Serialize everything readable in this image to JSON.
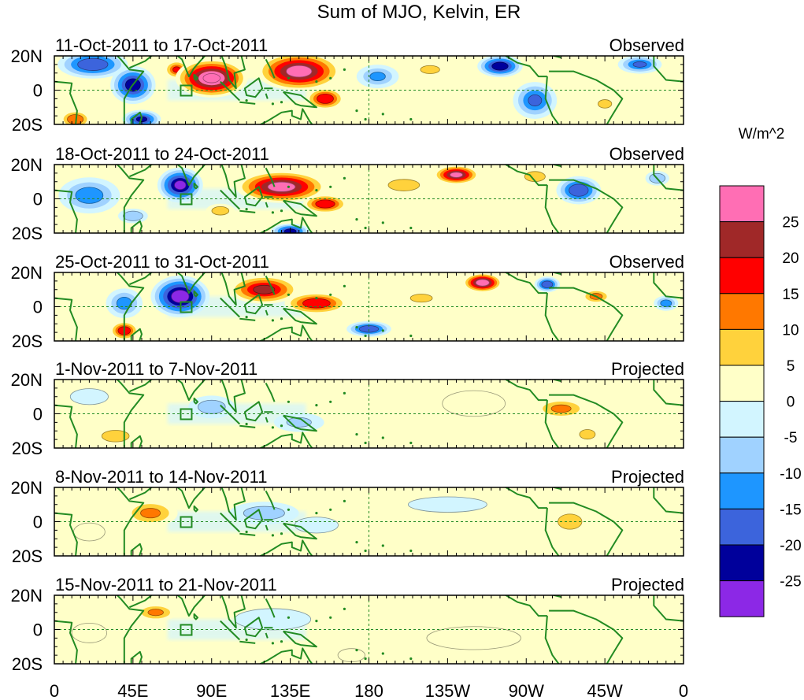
{
  "chart_data": {
    "type": "heatmap",
    "title": "Sum of MJO, Kelvin, ER",
    "units": "W/m^2",
    "lon_ticks": [
      "0",
      "45E",
      "90E",
      "135E",
      "180",
      "135W",
      "90W",
      "45W",
      "0"
    ],
    "lat_ticks": [
      "20N",
      "0",
      "20S"
    ],
    "xlim": [
      0,
      360
    ],
    "ylim": [
      -20,
      20
    ],
    "colorbar": {
      "levels": [
        "25",
        "20",
        "15",
        "10",
        "5",
        "0",
        "-5",
        "-10",
        "-15",
        "-20",
        "-25"
      ],
      "colors": [
        "#ff6eb4",
        "#a02828",
        "#ff0000",
        "#ff7800",
        "#ffd23c",
        "#ffffc8",
        "#d2f5ff",
        "#a0d2ff",
        "#1e96ff",
        "#3c64dc",
        "#00009b",
        "#8c28e6"
      ]
    },
    "panels": [
      {
        "period": "11-Oct-2011 to 17-Oct-2011",
        "type": "Observed",
        "blobs": [
          {
            "lon": 22,
            "lat": 15,
            "w": 22,
            "h": 9,
            "v": -22
          },
          {
            "lon": 45,
            "lat": 3,
            "w": 14,
            "h": 12,
            "v": -25
          },
          {
            "lon": 50,
            "lat": -17,
            "w": 12,
            "h": 6,
            "v": -23
          },
          {
            "lon": 12,
            "lat": -17,
            "w": 10,
            "h": 6,
            "v": 17
          },
          {
            "lon": 70,
            "lat": 12,
            "w": 8,
            "h": 6,
            "v": 18
          },
          {
            "lon": 90,
            "lat": 7,
            "w": 22,
            "h": 12,
            "v": 33
          },
          {
            "lon": 140,
            "lat": 11,
            "w": 26,
            "h": 12,
            "v": 30
          },
          {
            "lon": 155,
            "lat": -5,
            "w": 12,
            "h": 7,
            "v": 22
          },
          {
            "lon": 185,
            "lat": 8,
            "w": 14,
            "h": 8,
            "v": -13
          },
          {
            "lon": 255,
            "lat": 14,
            "w": 14,
            "h": 7,
            "v": -26
          },
          {
            "lon": 275,
            "lat": -6,
            "w": 14,
            "h": 12,
            "v": -18
          },
          {
            "lon": 335,
            "lat": 15,
            "w": 14,
            "h": 6,
            "v": -18
          },
          {
            "lon": 215,
            "lat": 12,
            "w": 14,
            "h": 6,
            "v": 8
          },
          {
            "lon": 315,
            "lat": -8,
            "w": 8,
            "h": 5,
            "v": 10
          }
        ]
      },
      {
        "period": "18-Oct-2011 to 24-Oct-2011",
        "type": "Observed",
        "blobs": [
          {
            "lon": 72,
            "lat": 8,
            "w": 14,
            "h": 11,
            "v": -28
          },
          {
            "lon": 20,
            "lat": 2,
            "w": 20,
            "h": 12,
            "v": -15
          },
          {
            "lon": 130,
            "lat": 7,
            "w": 28,
            "h": 10,
            "v": 30
          },
          {
            "lon": 155,
            "lat": -3,
            "w": 14,
            "h": 6,
            "v": 22
          },
          {
            "lon": 230,
            "lat": 14,
            "w": 14,
            "h": 6,
            "v": 29
          },
          {
            "lon": 200,
            "lat": 8,
            "w": 16,
            "h": 6,
            "v": 12
          },
          {
            "lon": 300,
            "lat": 5,
            "w": 14,
            "h": 9,
            "v": -22
          },
          {
            "lon": 135,
            "lat": -19,
            "w": 12,
            "h": 5,
            "v": -24
          },
          {
            "lon": 95,
            "lat": -7,
            "w": 10,
            "h": 5,
            "v": 10
          },
          {
            "lon": 275,
            "lat": 13,
            "w": 12,
            "h": 6,
            "v": 10
          },
          {
            "lon": 45,
            "lat": -10,
            "w": 10,
            "h": 5,
            "v": -12
          },
          {
            "lon": 345,
            "lat": 12,
            "w": 8,
            "h": 5,
            "v": -12
          }
        ]
      },
      {
        "period": "25-Oct-2011 to 31-Oct-2011",
        "type": "Observed",
        "blobs": [
          {
            "lon": 72,
            "lat": 6,
            "w": 18,
            "h": 13,
            "v": -30
          },
          {
            "lon": 40,
            "lat": 2,
            "w": 12,
            "h": 10,
            "v": -14
          },
          {
            "lon": 120,
            "lat": 10,
            "w": 22,
            "h": 9,
            "v": 24
          },
          {
            "lon": 150,
            "lat": 2,
            "w": 20,
            "h": 7,
            "v": 22
          },
          {
            "lon": 245,
            "lat": 14,
            "w": 12,
            "h": 6,
            "v": 32
          },
          {
            "lon": 40,
            "lat": -14,
            "w": 9,
            "h": 6,
            "v": 22
          },
          {
            "lon": 180,
            "lat": -13,
            "w": 14,
            "h": 5,
            "v": -22
          },
          {
            "lon": 282,
            "lat": 13,
            "w": 8,
            "h": 5,
            "v": -22
          },
          {
            "lon": 310,
            "lat": 6,
            "w": 10,
            "h": 5,
            "v": 14
          },
          {
            "lon": 350,
            "lat": 2,
            "w": 8,
            "h": 5,
            "v": -15
          },
          {
            "lon": 210,
            "lat": 5,
            "w": 16,
            "h": 6,
            "v": 8
          }
        ]
      },
      {
        "period": "1-Nov-2011 to 7-Nov-2011",
        "type": "Projected",
        "blobs": [
          {
            "lon": 290,
            "lat": 3,
            "w": 18,
            "h": 7,
            "v": 13
          },
          {
            "lon": 305,
            "lat": -12,
            "w": 8,
            "h": 5,
            "v": 12
          },
          {
            "lon": 35,
            "lat": -13,
            "w": 14,
            "h": 6,
            "v": 12
          },
          {
            "lon": 90,
            "lat": 4,
            "w": 16,
            "h": 8,
            "v": -10
          },
          {
            "lon": 140,
            "lat": -5,
            "w": 18,
            "h": 7,
            "v": -8
          },
          {
            "lon": 240,
            "lat": 6,
            "w": 24,
            "h": 10,
            "v": 6
          },
          {
            "lon": 20,
            "lat": 10,
            "w": 14,
            "h": 6,
            "v": -7
          }
        ]
      },
      {
        "period": "8-Nov-2011 to 14-Nov-2011",
        "type": "Projected",
        "blobs": [
          {
            "lon": 55,
            "lat": 5,
            "w": 18,
            "h": 9,
            "v": 13
          },
          {
            "lon": 120,
            "lat": 5,
            "w": 24,
            "h": 8,
            "v": -10
          },
          {
            "lon": 150,
            "lat": -2,
            "w": 16,
            "h": 6,
            "v": -7
          },
          {
            "lon": 295,
            "lat": 0,
            "w": 14,
            "h": 9,
            "v": 10
          },
          {
            "lon": 225,
            "lat": 10,
            "w": 30,
            "h": 6,
            "v": -6
          },
          {
            "lon": 20,
            "lat": -6,
            "w": 12,
            "h": 7,
            "v": 6
          }
        ]
      },
      {
        "period": "15-Nov-2011 to 21-Nov-2011",
        "type": "Projected",
        "blobs": [
          {
            "lon": 58,
            "lat": 10,
            "w": 14,
            "h": 6,
            "v": 13
          },
          {
            "lon": 125,
            "lat": 6,
            "w": 28,
            "h": 8,
            "v": -7
          },
          {
            "lon": 240,
            "lat": -5,
            "w": 40,
            "h": 10,
            "v": 4
          },
          {
            "lon": 170,
            "lat": -15,
            "w": 10,
            "h": 5,
            "v": 7
          },
          {
            "lon": 20,
            "lat": -2,
            "w": 14,
            "h": 8,
            "v": 5
          }
        ]
      }
    ]
  }
}
